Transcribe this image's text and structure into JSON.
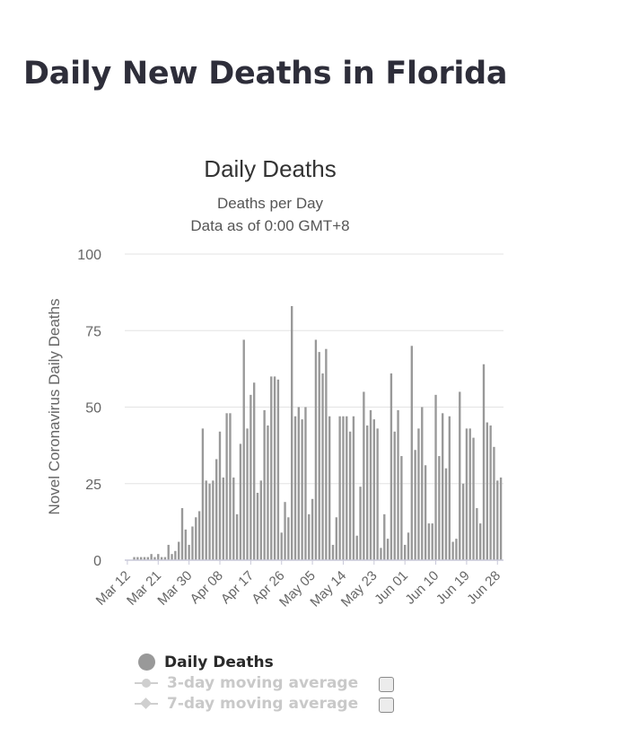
{
  "page": {
    "title": "Daily New Deaths in Florida"
  },
  "chart_data": {
    "type": "bar",
    "title": "Daily Deaths",
    "subtitle_lines": [
      "Deaths per Day",
      "Data as of 0:00 GMT+8"
    ],
    "ylabel": "Novel Coronavirus Daily Deaths",
    "xlabel": "",
    "ylim": [
      0,
      100
    ],
    "y_ticks": [
      0,
      25,
      50,
      75,
      100
    ],
    "x_tick_labels": [
      "Mar 12",
      "Mar 21",
      "Mar 30",
      "Apr 08",
      "Apr 17",
      "Apr 26",
      "May 05",
      "May 14",
      "May 23",
      "Jun 01",
      "Jun 10",
      "Jun 19",
      "Jun 28"
    ],
    "grid": true,
    "bar_color": "#999999",
    "series": [
      {
        "name": "Daily Deaths",
        "start_label": "Mar 12",
        "values": [
          0,
          0,
          1,
          1,
          1,
          1,
          1,
          2,
          1,
          2,
          1,
          1,
          5,
          2,
          3,
          6,
          17,
          10,
          5,
          11,
          14,
          16,
          43,
          26,
          25,
          26,
          33,
          42,
          27,
          48,
          48,
          27,
          15,
          38,
          72,
          43,
          54,
          58,
          22,
          26,
          49,
          44,
          60,
          60,
          59,
          9,
          19,
          14,
          83,
          47,
          50,
          46,
          50,
          15,
          20,
          72,
          68,
          61,
          69,
          47,
          5,
          14,
          47,
          47,
          47,
          42,
          47,
          8,
          24,
          55,
          44,
          49,
          46,
          43,
          4,
          15,
          7,
          61,
          42,
          49,
          34,
          5,
          9,
          70,
          36,
          43,
          50,
          31,
          12,
          12,
          54,
          34,
          48,
          30,
          47,
          6,
          7,
          55,
          25,
          43,
          43,
          40,
          17,
          12,
          64,
          45,
          44,
          37,
          26,
          27
        ]
      }
    ]
  },
  "legend": {
    "items": [
      {
        "label": "Daily Deaths",
        "active": true
      },
      {
        "label": "3-day moving average",
        "active": false
      },
      {
        "label": "7-day moving average",
        "active": false
      }
    ]
  }
}
